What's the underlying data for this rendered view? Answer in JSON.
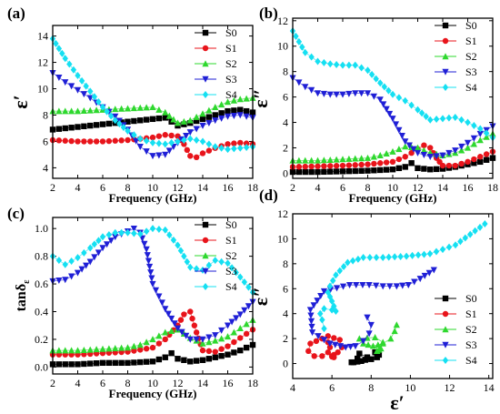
{
  "figure": {
    "background": "#ffffff",
    "axis_color": "#000000"
  },
  "series_styles": [
    {
      "name": "S0",
      "color": "#000000",
      "marker": "square"
    },
    {
      "name": "S1",
      "color": "#e8141b",
      "marker": "circle"
    },
    {
      "name": "S2",
      "color": "#2ed82e",
      "marker": "triangle-up"
    },
    {
      "name": "S3",
      "color": "#1f1fd6",
      "marker": "triangle-down"
    },
    {
      "name": "S4",
      "color": "#15e0f2",
      "marker": "diamond"
    }
  ],
  "chart_data": [
    {
      "panel": "(a)",
      "type": "scatter",
      "xlabel": "Frequency (GHz)",
      "ylabel": "ε′",
      "xlim": [
        2,
        18
      ],
      "ylim": [
        3.2,
        14.8
      ],
      "xticks": [
        2,
        4,
        6,
        8,
        10,
        12,
        14,
        16,
        18
      ],
      "yticks": [
        4,
        6,
        8,
        10,
        12,
        14
      ],
      "legend": "top-right",
      "series": [
        {
          "name": "S0",
          "x": [
            2,
            4,
            6,
            8,
            10,
            11,
            12,
            13,
            14,
            15,
            16,
            17,
            18
          ],
          "y": [
            6.9,
            7.1,
            7.3,
            7.5,
            7.7,
            7.8,
            7.2,
            7.4,
            7.7,
            8.0,
            8.3,
            8.4,
            8.2
          ]
        },
        {
          "name": "S1",
          "x": [
            2,
            4,
            6,
            8,
            10,
            11,
            12,
            12.5,
            13,
            13.5,
            14,
            15,
            16,
            17,
            18
          ],
          "y": [
            6.1,
            6.0,
            6.0,
            6.1,
            6.3,
            6.5,
            6.4,
            5.8,
            4.9,
            4.8,
            5.1,
            5.5,
            5.8,
            5.9,
            5.8
          ]
        },
        {
          "name": "S2",
          "x": [
            2,
            4,
            6,
            8,
            10,
            11,
            12,
            13,
            14,
            15,
            16,
            17,
            18
          ],
          "y": [
            8.3,
            8.3,
            8.4,
            8.5,
            8.6,
            8.2,
            7.4,
            7.6,
            8.1,
            8.6,
            9.0,
            9.2,
            9.3
          ]
        },
        {
          "name": "S3",
          "x": [
            2,
            3,
            4,
            5,
            6,
            7,
            8,
            9,
            10,
            11,
            12,
            13,
            14,
            15,
            16,
            17,
            18
          ],
          "y": [
            11.2,
            10.5,
            9.9,
            9.3,
            8.6,
            7.9,
            6.9,
            5.6,
            4.9,
            5.0,
            5.9,
            6.7,
            7.2,
            7.6,
            7.9,
            8.0,
            7.8
          ]
        },
        {
          "name": "S4",
          "x": [
            2,
            3,
            4,
            5,
            6,
            7,
            8,
            9,
            10,
            11,
            12,
            13,
            14,
            15,
            16,
            17,
            18
          ],
          "y": [
            13.8,
            12.3,
            11.0,
            9.8,
            8.6,
            7.6,
            6.8,
            6.2,
            5.9,
            5.8,
            6.0,
            6.2,
            6.0,
            5.6,
            5.4,
            5.5,
            5.6
          ]
        }
      ]
    },
    {
      "panel": "(b)",
      "type": "scatter",
      "xlabel": "Frequency (GHz)",
      "ylabel": "ε″",
      "xlim": [
        2,
        18
      ],
      "ylim": [
        -0.4,
        12.2
      ],
      "xticks": [
        2,
        4,
        6,
        8,
        10,
        12,
        14,
        16,
        18
      ],
      "yticks": [
        0,
        2,
        4,
        6,
        8,
        10,
        12
      ],
      "legend": "top-right",
      "series": [
        {
          "name": "S0",
          "x": [
            2,
            4,
            6,
            8,
            10,
            11,
            11.5,
            12,
            13,
            14,
            15,
            16,
            17,
            18
          ],
          "y": [
            0.1,
            0.1,
            0.15,
            0.2,
            0.3,
            0.5,
            0.8,
            0.4,
            0.3,
            0.35,
            0.5,
            0.7,
            0.9,
            1.2
          ]
        },
        {
          "name": "S1",
          "x": [
            2,
            4,
            6,
            8,
            10,
            11,
            12,
            12.5,
            13,
            13.5,
            14,
            15,
            16,
            17,
            18
          ],
          "y": [
            0.5,
            0.55,
            0.6,
            0.7,
            0.9,
            1.3,
            1.9,
            2.2,
            2.0,
            1.2,
            0.6,
            0.6,
            0.9,
            1.3,
            1.7
          ]
        },
        {
          "name": "S2",
          "x": [
            2,
            4,
            6,
            8,
            9,
            10,
            11,
            12,
            13,
            14,
            15,
            16,
            17,
            18
          ],
          "y": [
            1.0,
            1.0,
            1.1,
            1.2,
            1.4,
            1.7,
            2.1,
            2.0,
            1.6,
            1.4,
            1.6,
            2.0,
            2.6,
            3.1
          ]
        },
        {
          "name": "S3",
          "x": [
            2,
            3,
            4,
            5,
            6,
            7,
            8,
            9,
            10,
            11,
            12,
            13,
            14,
            15,
            16,
            17,
            18
          ],
          "y": [
            7.5,
            6.8,
            6.3,
            6.2,
            6.2,
            6.3,
            6.3,
            5.8,
            4.3,
            2.5,
            1.6,
            1.3,
            1.4,
            1.8,
            2.4,
            3.1,
            3.7
          ]
        },
        {
          "name": "S4",
          "x": [
            2,
            3,
            4,
            5,
            6,
            7,
            8,
            9,
            10,
            11,
            12,
            13,
            14,
            15,
            16,
            17,
            18
          ],
          "y": [
            11.2,
            9.5,
            8.8,
            8.6,
            8.5,
            8.5,
            8.1,
            7.1,
            6.2,
            5.7,
            5.0,
            4.2,
            4.3,
            4.4,
            4.0,
            3.5,
            2.8
          ]
        }
      ]
    },
    {
      "panel": "(c)",
      "type": "scatter",
      "xlabel": "Frequency (GHz)",
      "ylabel": "tanδε",
      "ylabel_main": "tanδ",
      "ylabel_sub": "ε",
      "xlim": [
        2,
        18
      ],
      "ylim": [
        -0.05,
        1.08
      ],
      "xticks": [
        2,
        4,
        6,
        8,
        10,
        12,
        14,
        16,
        18
      ],
      "yticks": [
        0.0,
        0.2,
        0.4,
        0.6,
        0.8,
        1.0
      ],
      "ytick_labels": [
        "0.0",
        "0.2",
        "0.4",
        "0.6",
        "0.8",
        "1.0"
      ],
      "legend": "top-right",
      "series": [
        {
          "name": "S0",
          "x": [
            2,
            4,
            6,
            8,
            10,
            11,
            11.5,
            12,
            13,
            14,
            15,
            16,
            17,
            18
          ],
          "y": [
            0.02,
            0.02,
            0.03,
            0.03,
            0.04,
            0.07,
            0.1,
            0.06,
            0.04,
            0.05,
            0.07,
            0.09,
            0.12,
            0.16
          ]
        },
        {
          "name": "S1",
          "x": [
            2,
            4,
            6,
            8,
            10,
            11,
            12,
            12.5,
            13,
            13.5,
            14,
            15,
            16,
            17,
            18
          ],
          "y": [
            0.09,
            0.09,
            0.1,
            0.11,
            0.14,
            0.2,
            0.3,
            0.38,
            0.4,
            0.25,
            0.12,
            0.11,
            0.15,
            0.21,
            0.27
          ]
        },
        {
          "name": "S2",
          "x": [
            2,
            4,
            6,
            8,
            9,
            10,
            11,
            12,
            13,
            14,
            15,
            16,
            17,
            18
          ],
          "y": [
            0.12,
            0.12,
            0.13,
            0.14,
            0.16,
            0.2,
            0.25,
            0.27,
            0.21,
            0.17,
            0.19,
            0.22,
            0.28,
            0.34
          ]
        },
        {
          "name": "S3",
          "x": [
            2,
            3,
            4,
            5,
            6,
            7,
            8,
            8.5,
            9,
            9.5,
            10,
            11,
            12,
            13,
            14,
            15,
            16,
            17,
            18
          ],
          "y": [
            0.62,
            0.63,
            0.68,
            0.76,
            0.86,
            0.94,
            0.98,
            1.0,
            0.97,
            0.85,
            0.6,
            0.42,
            0.28,
            0.2,
            0.2,
            0.23,
            0.3,
            0.38,
            0.47
          ]
        },
        {
          "name": "S4",
          "x": [
            2,
            3,
            4,
            5,
            6,
            7,
            8,
            9,
            10,
            11,
            12,
            13,
            14,
            15,
            16,
            17,
            18
          ],
          "y": [
            0.8,
            0.74,
            0.79,
            0.86,
            0.94,
            0.97,
            0.97,
            0.96,
            1.0,
            0.99,
            0.88,
            0.72,
            0.7,
            0.77,
            0.75,
            0.65,
            0.54
          ]
        }
      ]
    },
    {
      "panel": "(d)",
      "type": "scatter",
      "xlabel": "ε′",
      "ylabel": "ε″",
      "xlim": [
        4,
        14.2
      ],
      "ylim": [
        -1.2,
        12
      ],
      "xticks": [
        4,
        6,
        8,
        10,
        12,
        14
      ],
      "yticks": [
        0,
        2,
        4,
        6,
        8,
        10,
        12
      ],
      "legend": "bottom-right",
      "series": [
        {
          "name": "S0",
          "x": [
            7.0,
            7.1,
            7.3,
            7.5,
            7.7,
            7.8,
            7.4,
            7.3,
            7.7,
            8.0,
            8.3,
            8.4,
            8.2
          ],
          "y": [
            0.1,
            0.1,
            0.15,
            0.2,
            0.3,
            0.5,
            0.8,
            0.4,
            0.3,
            0.35,
            0.5,
            0.7,
            0.9
          ]
        },
        {
          "name": "S1",
          "x": [
            6.1,
            6.0,
            6.0,
            6.1,
            6.3,
            6.5,
            6.4,
            5.8,
            4.9,
            4.8,
            5.1,
            5.5,
            5.8,
            5.9,
            5.8
          ],
          "y": [
            0.5,
            0.55,
            0.6,
            0.7,
            0.9,
            1.3,
            1.9,
            2.2,
            1.6,
            1.0,
            0.6,
            0.6,
            0.9,
            1.3,
            1.7
          ]
        },
        {
          "name": "S2",
          "x": [
            8.3,
            8.3,
            8.4,
            8.5,
            8.6,
            8.2,
            7.4,
            7.6,
            8.1,
            8.6,
            9.0,
            9.2,
            9.3
          ],
          "y": [
            1.0,
            1.0,
            1.1,
            1.2,
            1.7,
            2.1,
            2.0,
            1.6,
            1.4,
            1.6,
            2.0,
            2.6,
            3.1
          ]
        },
        {
          "name": "S3",
          "x": [
            11.2,
            10.5,
            9.9,
            9.3,
            8.6,
            7.9,
            6.9,
            5.6,
            4.9,
            5.0,
            5.9,
            6.7,
            7.2,
            7.6,
            7.9,
            8.0,
            7.8
          ],
          "y": [
            7.5,
            6.8,
            6.3,
            6.2,
            6.2,
            6.3,
            6.3,
            5.8,
            4.3,
            2.5,
            1.6,
            1.3,
            1.4,
            1.8,
            2.4,
            3.1,
            3.7
          ]
        },
        {
          "name": "S4",
          "x": [
            13.8,
            12.3,
            11.0,
            9.8,
            8.6,
            7.6,
            6.8,
            6.2,
            5.9,
            5.8,
            6.0,
            6.2,
            6.0,
            5.6,
            5.4,
            5.5,
            5.6
          ],
          "y": [
            11.2,
            9.5,
            8.8,
            8.6,
            8.5,
            8.5,
            8.1,
            7.1,
            6.2,
            5.7,
            5.0,
            4.2,
            4.3,
            4.4,
            4.0,
            3.5,
            2.8
          ]
        }
      ]
    }
  ]
}
